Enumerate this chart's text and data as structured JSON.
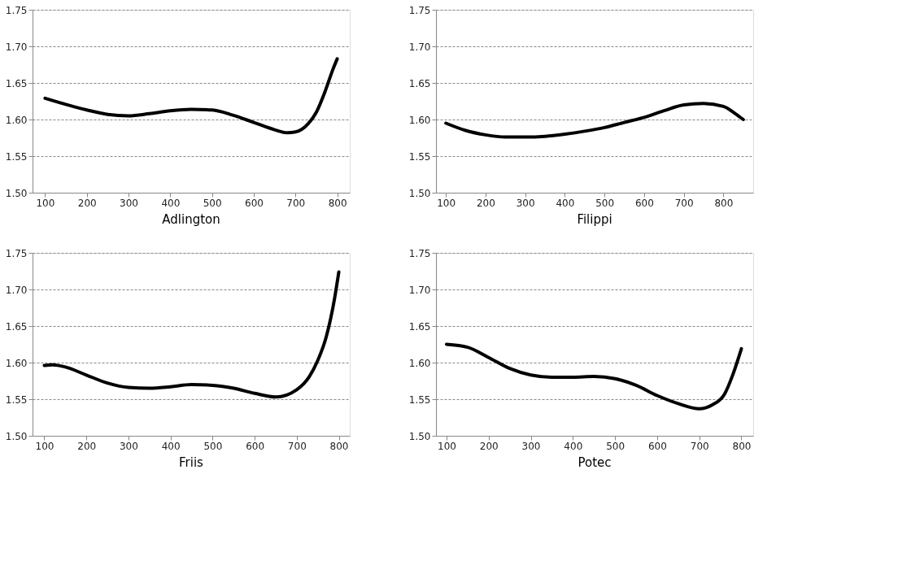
{
  "chart_data": [
    {
      "type": "line",
      "title": "Adlington",
      "color": "#000000",
      "grid": "y",
      "xlim": [
        70,
        830
      ],
      "xticks": [
        100,
        200,
        300,
        400,
        500,
        600,
        700,
        800
      ],
      "ylim": [
        1.5,
        1.75
      ],
      "yticks": [
        {
          "value": 1.5,
          "label": "1.50"
        },
        1.55,
        {
          "value": 1.6,
          "label": "1.60"
        },
        1.65,
        {
          "value": 1.7,
          "label": "1.70"
        },
        1.75
      ],
      "x": [
        100,
        200,
        250,
        300,
        350,
        400,
        450,
        500,
        550,
        600,
        650,
        680,
        700,
        730,
        750,
        770,
        790,
        800
      ],
      "values": [
        1.629,
        1.613,
        1.607,
        1.605,
        1.608,
        1.612,
        1.614,
        1.613,
        1.606,
        1.596,
        1.586,
        1.582,
        1.583,
        1.594,
        1.61,
        1.637,
        1.669,
        1.683
      ]
    },
    {
      "type": "line",
      "title": "Filippi",
      "color": "#000000",
      "grid": "y",
      "xlim": [
        75,
        875
      ],
      "xticks": [
        100,
        200,
        300,
        400,
        500,
        600,
        700,
        800
      ],
      "ylim": [
        1.5,
        1.75
      ],
      "yticks": [
        {
          "value": 1.5,
          "label": "1.50"
        },
        1.55,
        {
          "value": 1.6,
          "label": "1.60"
        },
        1.65,
        {
          "value": 1.7,
          "label": "1.70"
        },
        1.75
      ],
      "x": [
        100,
        150,
        200,
        250,
        300,
        350,
        400,
        450,
        500,
        550,
        600,
        650,
        700,
        750,
        800,
        830,
        850
      ],
      "values": [
        1.595,
        1.585,
        1.579,
        1.576,
        1.576,
        1.577,
        1.58,
        1.584,
        1.589,
        1.596,
        1.603,
        1.612,
        1.62,
        1.622,
        1.618,
        1.608,
        1.6
      ]
    },
    {
      "type": "line",
      "title": "Friis",
      "color": "#000000",
      "grid": "y",
      "xlim": [
        72,
        826
      ],
      "xticks": [
        100,
        200,
        300,
        400,
        500,
        600,
        700,
        800
      ],
      "ylim": [
        1.5,
        1.75
      ],
      "yticks": [
        {
          "value": 1.5,
          "label": "1.50"
        },
        1.55,
        {
          "value": 1.6,
          "label": "1.60"
        },
        1.65,
        {
          "value": 1.7,
          "label": "1.70"
        },
        1.75
      ],
      "x": [
        100,
        120,
        150,
        200,
        250,
        300,
        350,
        400,
        450,
        500,
        550,
        600,
        650,
        700,
        730,
        750,
        770,
        790,
        800
      ],
      "values": [
        1.596,
        1.597,
        1.594,
        1.583,
        1.572,
        1.566,
        1.565,
        1.567,
        1.57,
        1.569,
        1.565,
        1.558,
        1.553,
        1.563,
        1.581,
        1.603,
        1.635,
        1.688,
        1.724
      ]
    },
    {
      "type": "line",
      "title": "Potec",
      "color": "#000000",
      "grid": "y",
      "xlim": [
        75,
        828
      ],
      "xticks": [
        100,
        200,
        300,
        400,
        500,
        600,
        700,
        800
      ],
      "ylim": [
        1.5,
        1.75
      ],
      "yticks": [
        {
          "value": 1.5,
          "label": "1.50"
        },
        1.55,
        {
          "value": 1.6,
          "label": "1.60"
        },
        1.65,
        {
          "value": 1.7,
          "label": "1.70"
        },
        1.75
      ],
      "x": [
        100,
        150,
        200,
        250,
        300,
        350,
        400,
        450,
        500,
        550,
        600,
        650,
        700,
        730,
        760,
        780,
        800
      ],
      "values": [
        1.625,
        1.621,
        1.607,
        1.592,
        1.583,
        1.58,
        1.58,
        1.581,
        1.578,
        1.569,
        1.555,
        1.544,
        1.537,
        1.542,
        1.557,
        1.584,
        1.619
      ]
    }
  ]
}
